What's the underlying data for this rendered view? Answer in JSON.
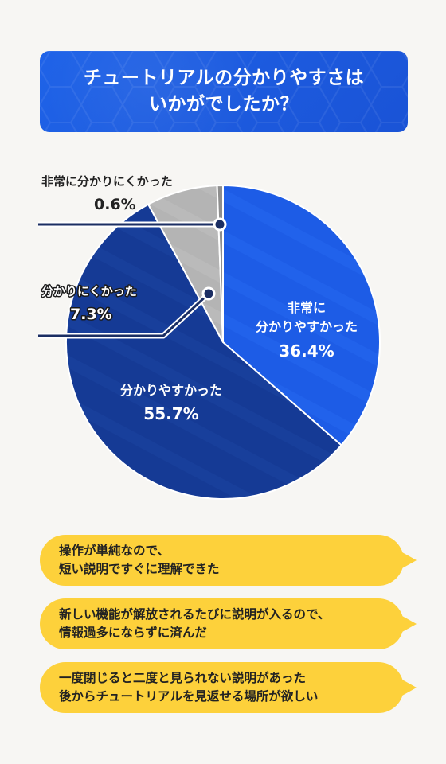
{
  "title": "チュートリアルの分かりやすさは\nいかがでしたか？",
  "chart_data": {
    "type": "pie",
    "categories": [
      "非常に分かりやすかった",
      "分かりやすかった",
      "分かりにくかった",
      "非常に分かりにくかった"
    ],
    "values": [
      36.4,
      55.7,
      7.3,
      0.6
    ],
    "labels": [
      {
        "line1": "非常に",
        "line2": "分かりやすかった",
        "pct": "36.4%"
      },
      {
        "line1": "分かりやすかった",
        "pct": "55.7%"
      },
      {
        "line1": "分かりにくかった",
        "pct": "7.3%"
      },
      {
        "line1": "非常に分かりにくかった",
        "pct": "0.6%"
      }
    ],
    "colors": [
      "#1d5ce6",
      "#153a95",
      "#b4b4b4",
      "#8e8e8e"
    ]
  },
  "comments": [
    "操作が単純なので、\n短い説明ですぐに理解できた",
    "新しい機能が解放されるたびに説明が入るので、\n情報過多にならずに済んだ",
    "一度閉じると二度と見られない説明があった\n後からチュートリアルを見返せる場所が欲しい"
  ]
}
